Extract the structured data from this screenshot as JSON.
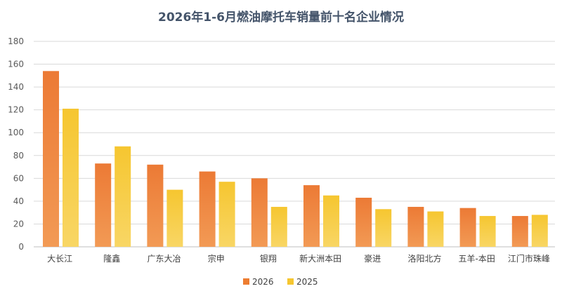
{
  "chart_data": {
    "type": "bar",
    "title": "2026年1-6月燃油摩托车销量前十名企业情况",
    "xlabel": "",
    "ylabel": "",
    "ylim": [
      0,
      180
    ],
    "yticks": [
      0,
      20,
      40,
      60,
      80,
      100,
      120,
      140,
      160,
      180
    ],
    "grid": true,
    "legend_position": "bottom",
    "categories": [
      "大长江",
      "隆鑫",
      "广东大冶",
      "宗申",
      "银翔",
      "新大洲本田",
      "豪进",
      "洛阳北方",
      "五羊-本田",
      "江门市珠峰"
    ],
    "series": [
      {
        "name": "2026",
        "color": "#ed7d31",
        "values": [
          154,
          73,
          72,
          66,
          60,
          54,
          43,
          35,
          34,
          27
        ]
      },
      {
        "name": "2025",
        "color": "#f6c630",
        "values": [
          121,
          88,
          50,
          57,
          35,
          45,
          33,
          31,
          27,
          28
        ]
      }
    ]
  }
}
